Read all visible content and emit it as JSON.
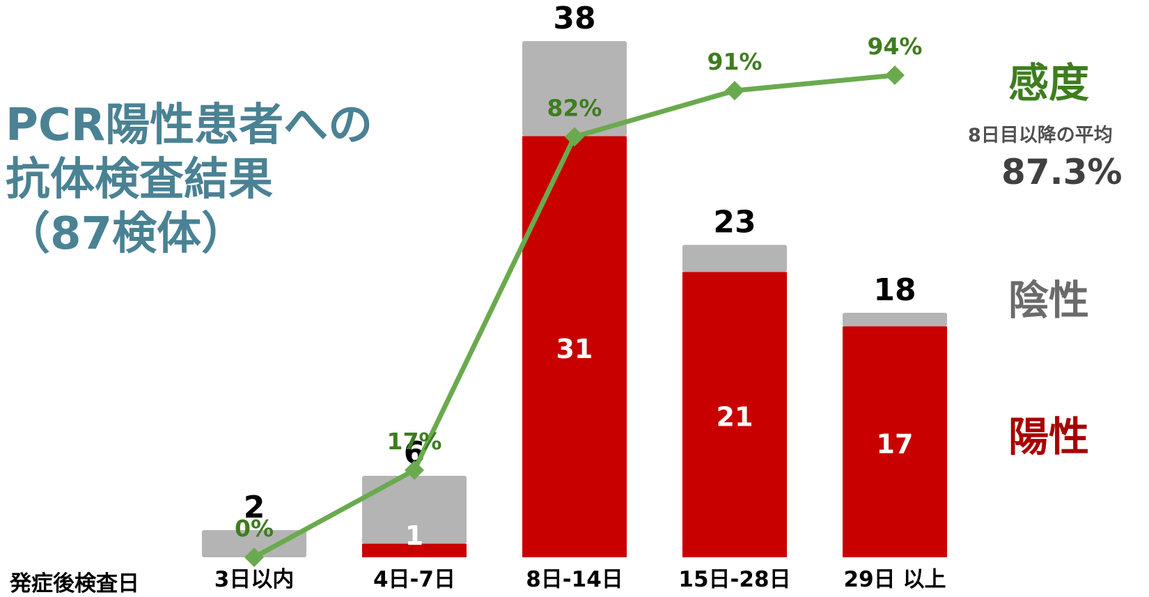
{
  "title_lines": [
    "PCR陽性患者への",
    "抗体検査結果",
    "（87検体）"
  ],
  "x_axis_caption": "発症後検査日",
  "legend": {
    "sensitivity": "感度",
    "negative": "陰性",
    "positive": "陽性"
  },
  "average_note": "8日目以降の平均",
  "average_value": "87.3%",
  "colors": {
    "title": "#4a8294",
    "positive": "#c80000",
    "negative": "#b4b4b4",
    "line": "#6aaa4e",
    "line_label": "#3e7d1f",
    "sensitivity_label": "#3e7d1f",
    "negative_label": "#6b6b6b",
    "positive_label": "#a80000"
  },
  "chart_data": {
    "type": "bar",
    "stacked": true,
    "categories": [
      "3日以内",
      "4日-7日",
      "8日-14日",
      "15日-28日",
      "29日 以上"
    ],
    "series": [
      {
        "name": "陽性",
        "values": [
          0,
          1,
          31,
          21,
          17
        ]
      },
      {
        "name": "陰性",
        "values": [
          2,
          5,
          7,
          2,
          1
        ]
      }
    ],
    "totals": [
      2,
      6,
      38,
      23,
      18
    ],
    "positive_labels": [
      "",
      "1",
      "31",
      "21",
      "17"
    ],
    "line_series": {
      "name": "感度",
      "values": [
        0,
        17,
        82,
        91,
        94
      ],
      "labels": [
        "0%",
        "17%",
        "82%",
        "91%",
        "94%"
      ]
    },
    "ylim": [
      0,
      40
    ],
    "grid": false
  }
}
